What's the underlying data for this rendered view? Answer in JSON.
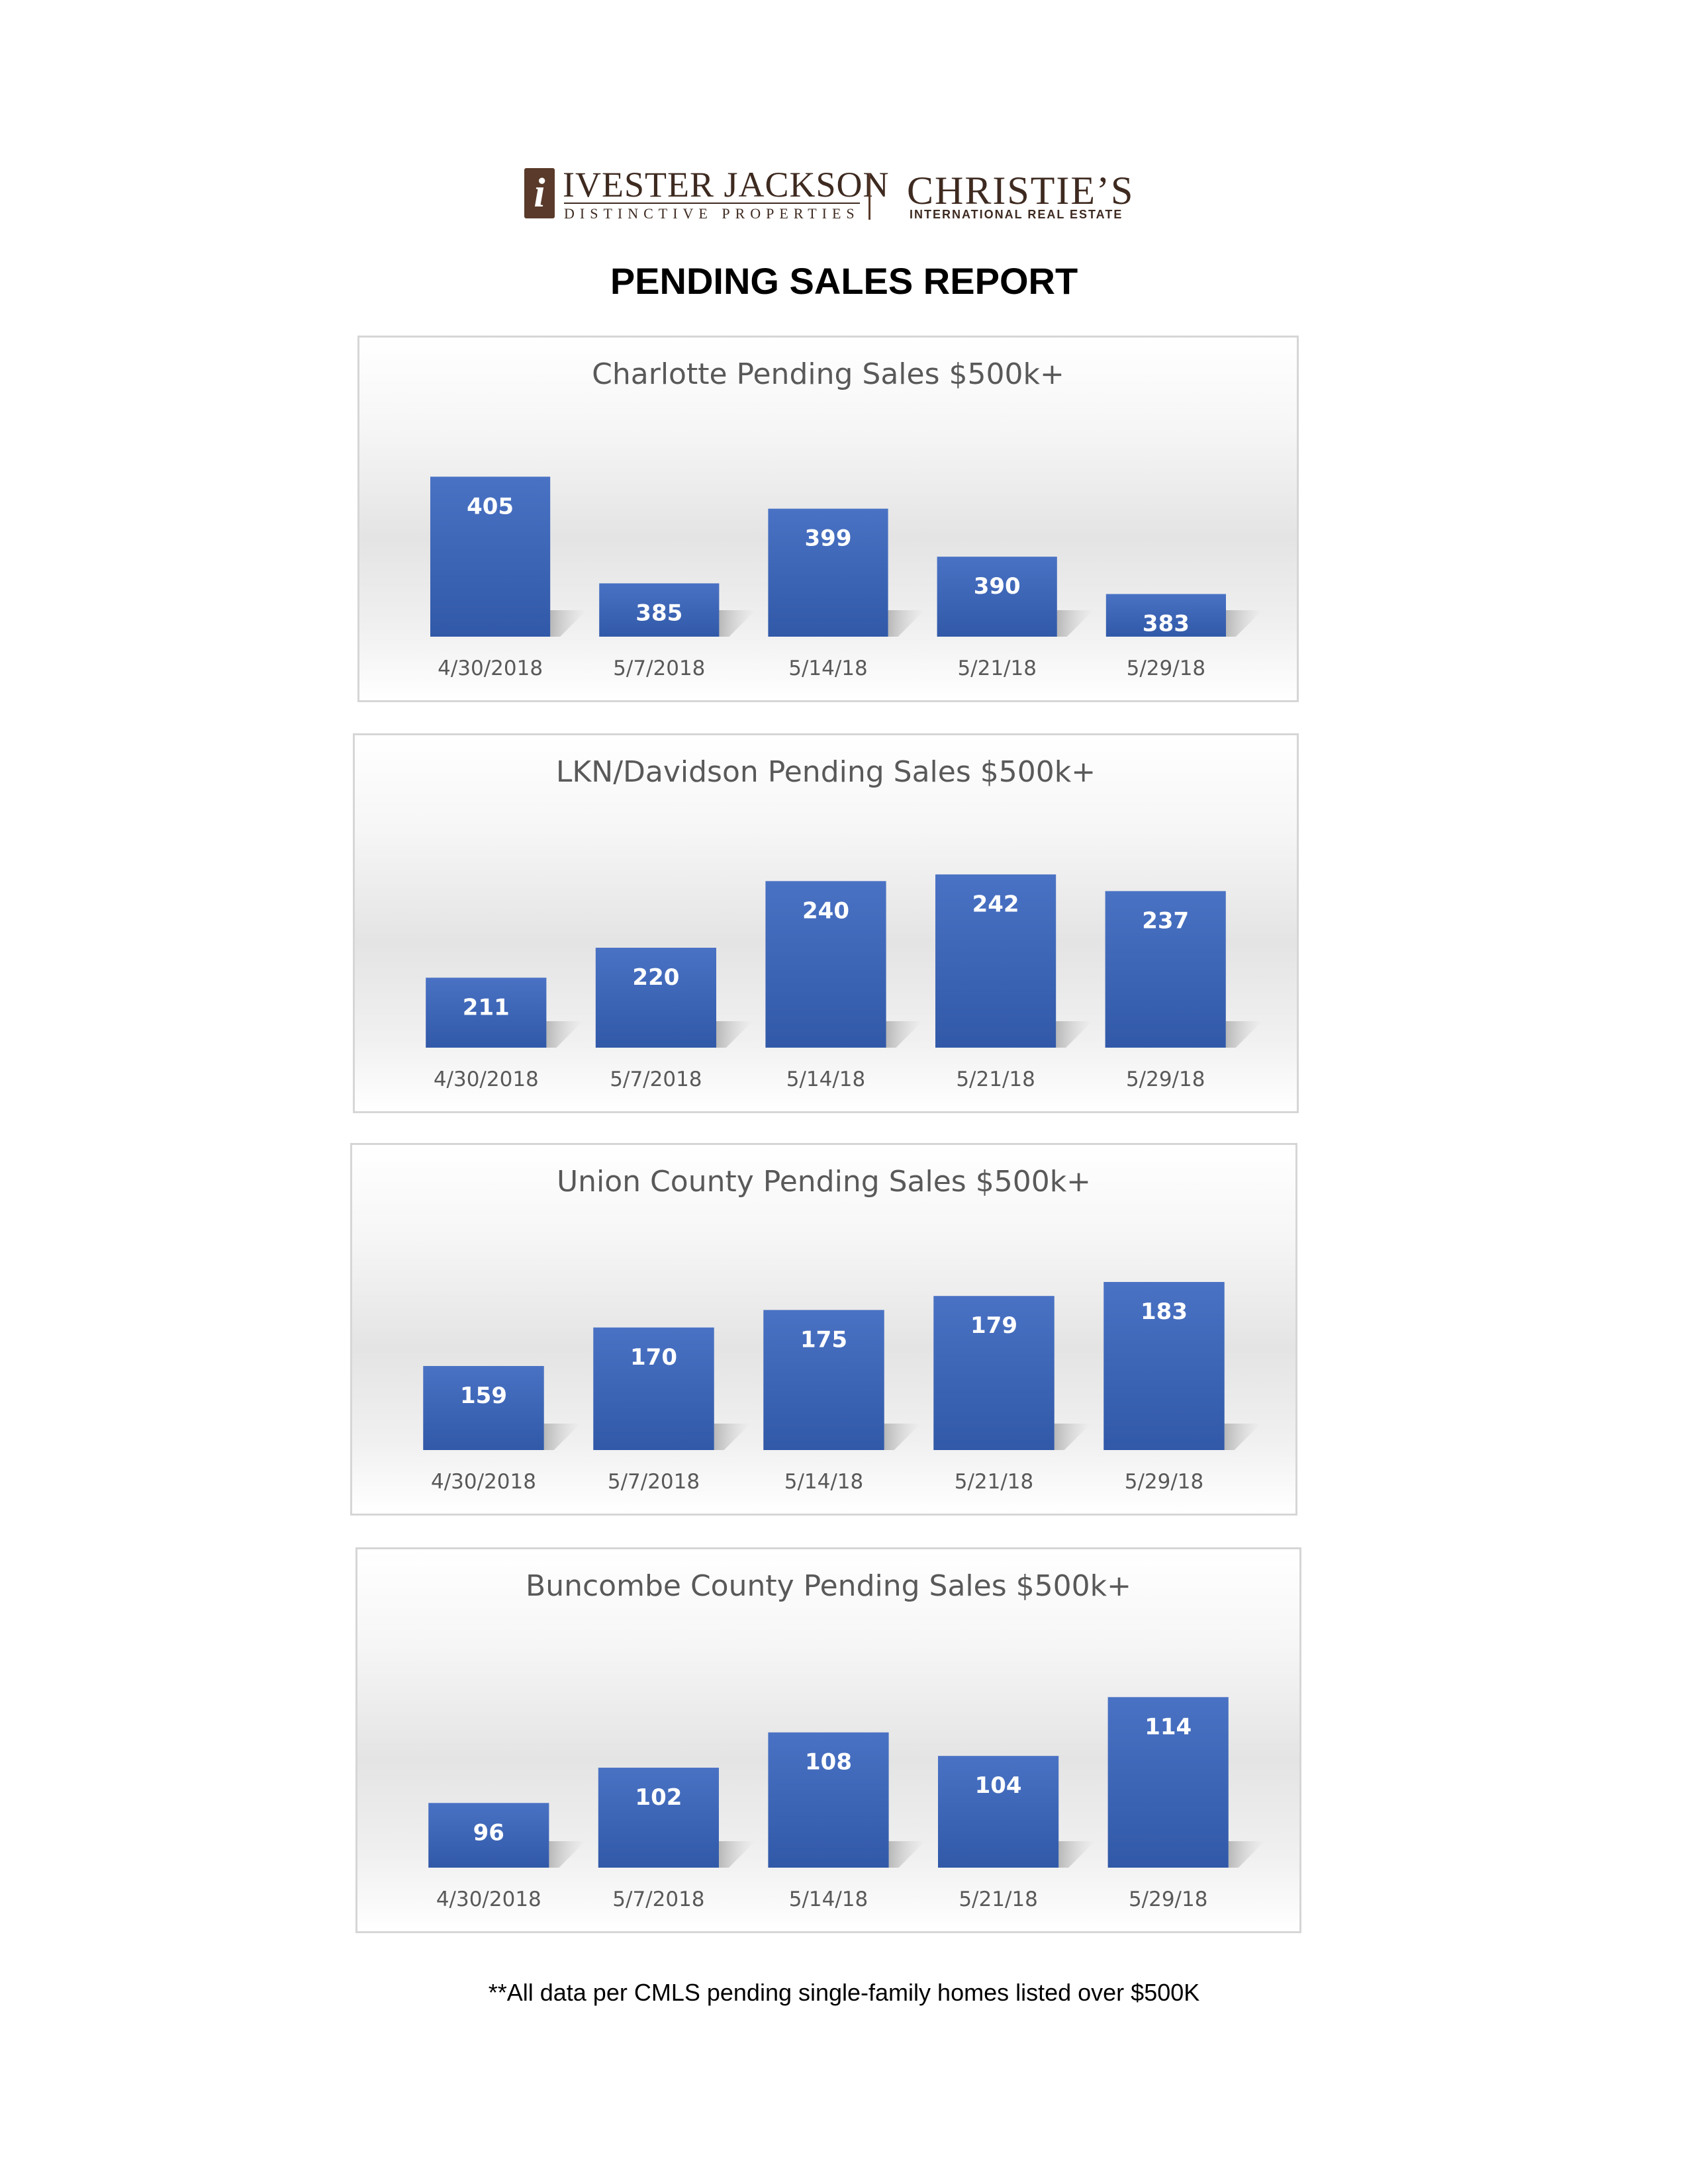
{
  "logos": {
    "ivester_jackson_mark": "i",
    "ivester_jackson_name": "IVESTER JACKSON",
    "ivester_jackson_tagline": "DISTINCTIVE PROPERTIES",
    "christies_name": "CHRISTIE’S",
    "christies_tagline": "INTERNATIONAL REAL ESTATE",
    "brand_color": "#5a3a2a"
  },
  "report": {
    "title": "PENDING SALES REPORT"
  },
  "bar_color": "#3f64b5",
  "chart_data": [
    {
      "type": "bar",
      "title": "Charlotte Pending Sales $500k+",
      "categories": [
        "4/30/2018",
        "5/7/2018",
        "5/14/18",
        "5/21/18",
        "5/29/18"
      ],
      "values": [
        405,
        385,
        399,
        390,
        383
      ],
      "ylim": [
        375,
        410
      ],
      "grid": false,
      "legend": "none"
    },
    {
      "type": "bar",
      "title": "LKN/Davidson Pending Sales $500k+",
      "categories": [
        "4/30/2018",
        "5/7/2018",
        "5/14/18",
        "5/21/18",
        "5/29/18"
      ],
      "values": [
        211,
        220,
        240,
        242,
        237
      ],
      "ylim": [
        190,
        250
      ],
      "grid": false,
      "legend": "none"
    },
    {
      "type": "bar",
      "title": "Union County Pending Sales $500k+",
      "categories": [
        "4/30/2018",
        "5/7/2018",
        "5/14/18",
        "5/21/18",
        "5/29/18"
      ],
      "values": [
        159,
        170,
        175,
        179,
        183
      ],
      "ylim": [
        135,
        190
      ],
      "grid": false,
      "legend": "none"
    },
    {
      "type": "bar",
      "title": "Buncombe County Pending Sales $500k+",
      "categories": [
        "4/30/2018",
        "5/7/2018",
        "5/14/18",
        "5/21/18",
        "5/29/18"
      ],
      "values": [
        96,
        102,
        108,
        104,
        114
      ],
      "ylim": [
        85,
        120
      ],
      "grid": false,
      "legend": "none"
    }
  ],
  "footnote": "**All data per CMLS pending single-family homes listed over $500K"
}
